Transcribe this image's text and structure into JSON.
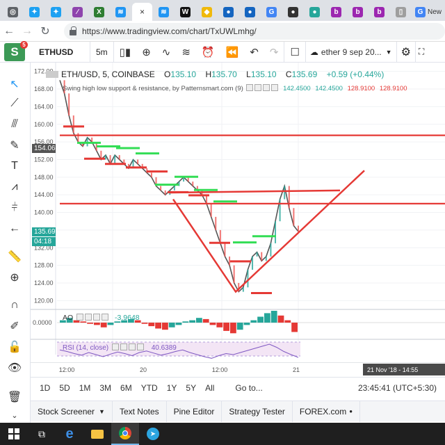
{
  "browser": {
    "tabs": [
      {
        "icon": "chrome-icon",
        "color": "#5f6368",
        "glyph": "◎"
      },
      {
        "icon": "twitter-icon",
        "color": "#1da1f2",
        "glyph": "✦"
      },
      {
        "icon": "twitter-icon",
        "color": "#1da1f2",
        "glyph": "✦"
      },
      {
        "icon": "chart-app-icon",
        "color": "#8e44ad",
        "glyph": "∕"
      },
      {
        "icon": "x-icon",
        "color": "#2e7d32",
        "glyph": "X"
      },
      {
        "icon": "tradingview-icon",
        "color": "#2196f3",
        "glyph": "≋"
      },
      {
        "icon": "close-icon",
        "color": "#333333",
        "glyph": "×",
        "active": true
      },
      {
        "icon": "tradingview-icon",
        "color": "#2196f3",
        "glyph": "≋"
      },
      {
        "icon": "w-icon",
        "color": "#111111",
        "glyph": "W"
      },
      {
        "icon": "binance-icon",
        "color": "#f0b90b",
        "glyph": "◆"
      },
      {
        "icon": "drop-icon",
        "color": "#1565c0",
        "glyph": "●"
      },
      {
        "icon": "drop-icon",
        "color": "#1565c0",
        "glyph": "●"
      },
      {
        "icon": "google-icon",
        "color": "#4285f4",
        "glyph": "G"
      },
      {
        "icon": "circle-icon",
        "color": "#333333",
        "glyph": "●"
      },
      {
        "icon": "alien-icon",
        "color": "#26a69a",
        "glyph": "●"
      },
      {
        "icon": "bst-icon",
        "color": "#9c27b0",
        "glyph": "b"
      },
      {
        "icon": "bst-icon",
        "color": "#9c27b0",
        "glyph": "b"
      },
      {
        "icon": "bst-icon",
        "color": "#9c27b0",
        "glyph": "b"
      },
      {
        "icon": "page-icon",
        "color": "#9e9e9e",
        "glyph": "▯"
      },
      {
        "icon": "google-icon",
        "color": "#4285f4",
        "glyph": "G",
        "text": "New"
      }
    ],
    "url": "https://www.tradingview.com/chart/TxUWLmhg/"
  },
  "toolbar": {
    "logo": "S",
    "logo_badge": "5",
    "symbol": "ETHUSD",
    "interval": "5m",
    "layout_name": "ether 9 sep 20...",
    "logo_color": "#3c9a56"
  },
  "legend": {
    "pair": "ETH/USD, 5, COINBASE",
    "open_label": "O",
    "open": "135.10",
    "high_label": "H",
    "high": "135.70",
    "low_label": "L",
    "low": "135.10",
    "close_label": "C",
    "close": "135.69",
    "change": "+0.59 (+0.44%)",
    "indicator": "Swing high low support & resistance, by Patternsmart.com (9)",
    "ind_vals": [
      "142.4500",
      "142.4500",
      "128.9100",
      "128.9100"
    ]
  },
  "price_axis": {
    "ticks": [
      "172.00",
      "168.00",
      "164.00",
      "160.00",
      "156.00",
      "152.00",
      "148.00",
      "144.00",
      "140.00",
      "136.00",
      "132.00",
      "128.00",
      "124.00",
      "120.00"
    ],
    "flag_price_1": "154.06",
    "flag_price_2": "135.69",
    "flag_countdown": "04:18",
    "flag_color_1": "#555555",
    "flag_color_2": "#26a69a"
  },
  "ao": {
    "label": "AO",
    "value": "-3.9648",
    "zero": "0.0000"
  },
  "rsi": {
    "label": "RSI (14, close)",
    "value": "40.6389"
  },
  "time_axis": {
    "labels": [
      "12:00",
      "20",
      "12:00",
      "21"
    ],
    "cursor_label": "21 Nov '18 - 14:55"
  },
  "range_bar": {
    "ranges": [
      "1D",
      "5D",
      "1M",
      "3M",
      "6M",
      "YTD",
      "1Y",
      "5Y",
      "All"
    ],
    "goto": "Go to...",
    "clock": "23:45:41 (UTC+5:30)"
  },
  "panels": {
    "tabs": [
      "Stock Screener",
      "Text Notes",
      "Pine Editor",
      "Strategy Tester",
      "FOREX.com"
    ]
  },
  "chart_data": {
    "type": "line",
    "ylim": [
      118,
      174
    ],
    "y_ticks": [
      172,
      168,
      164,
      160,
      156,
      152,
      148,
      144,
      140,
      136,
      132,
      128,
      124,
      120
    ],
    "close_series": [
      170,
      167,
      162,
      158,
      156,
      155,
      157,
      156,
      154,
      152,
      153,
      151,
      153,
      152,
      151,
      150,
      152,
      151,
      150,
      149,
      148,
      146,
      145,
      144,
      145,
      146,
      147,
      148,
      147,
      146,
      145,
      144,
      142,
      139,
      136,
      133,
      130,
      128,
      124,
      122,
      123,
      127,
      130,
      131,
      129,
      130,
      133,
      138,
      143,
      146,
      141,
      137,
      135.69
    ],
    "horizontal_levels": [
      157.5,
      142.0
    ],
    "resistance_green": [
      155.8,
      155.0,
      154.6,
      153.4,
      146.3,
      148.1,
      145.1,
      142.5,
      133.2,
      134.6
    ],
    "support_red": [
      159.5,
      152.2,
      151.0,
      150.2,
      149.3,
      144.6,
      143.9,
      133.1,
      128.9,
      121.7
    ],
    "ao_values": [
      1,
      2,
      1,
      0.5,
      -0.5,
      -1,
      -2,
      -1,
      0.5,
      1,
      1.5,
      1,
      -0.5,
      -1.5,
      -2.5,
      -3,
      -2,
      -1,
      0.5,
      1,
      2,
      1.5,
      -1,
      -2,
      -3.5,
      -4.5,
      -3,
      -1,
      1,
      2.5,
      4,
      5,
      3,
      1,
      -3.96
    ],
    "rsi_values": [
      55,
      52,
      48,
      45,
      50,
      46,
      42,
      47,
      51,
      48,
      44,
      50,
      53,
      49,
      45,
      48,
      52,
      55,
      50,
      46,
      42,
      39,
      44,
      48,
      46,
      50,
      54,
      58,
      62,
      66,
      60,
      52,
      46,
      40.64
    ]
  }
}
